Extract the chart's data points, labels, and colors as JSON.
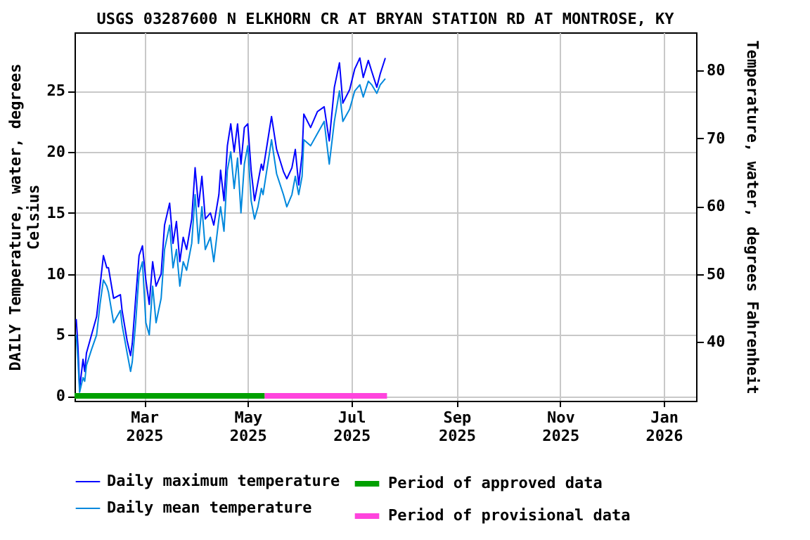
{
  "chart_data": {
    "type": "line",
    "title": "USGS 03287600 N ELKHORN CR AT BRYAN STATION RD AT MONTROSE, KY",
    "ylabel": "DAILY Temperature, water, degrees Celsius",
    "y2label": "Temperature, water, degrees Fahrenheit",
    "x": [
      "2025-01-20",
      "2025-01-21",
      "2025-01-22",
      "2025-01-24",
      "2025-01-25",
      "2025-01-26",
      "2025-01-29",
      "2025-02-01",
      "2025-02-03",
      "2025-02-05",
      "2025-02-07",
      "2025-02-08",
      "2025-02-11",
      "2025-02-15",
      "2025-02-16",
      "2025-02-19",
      "2025-02-21",
      "2025-02-22",
      "2025-02-24",
      "2025-02-26",
      "2025-02-28",
      "2025-03-02",
      "2025-03-04",
      "2025-03-06",
      "2025-03-08",
      "2025-03-11",
      "2025-03-13",
      "2025-03-16",
      "2025-03-18",
      "2025-03-20",
      "2025-03-22",
      "2025-03-24",
      "2025-03-26",
      "2025-03-29",
      "2025-03-31",
      "2025-04-02",
      "2025-04-04",
      "2025-04-06",
      "2025-04-09",
      "2025-04-11",
      "2025-04-14",
      "2025-04-15",
      "2025-04-17",
      "2025-04-19",
      "2025-04-21",
      "2025-04-23",
      "2025-04-25",
      "2025-04-27",
      "2025-04-29",
      "2025-05-01",
      "2025-05-03",
      "2025-05-05",
      "2025-05-07",
      "2025-05-09",
      "2025-05-10",
      "2025-05-15",
      "2025-05-18",
      "2025-05-22",
      "2025-05-24",
      "2025-05-27",
      "2025-05-29",
      "2025-05-31",
      "2025-06-02",
      "2025-06-03",
      "2025-06-07",
      "2025-06-11",
      "2025-06-15",
      "2025-06-18",
      "2025-06-21",
      "2025-06-24",
      "2025-06-26",
      "2025-06-30",
      "2025-07-03",
      "2025-07-06",
      "2025-07-08",
      "2025-07-11",
      "2025-07-13",
      "2025-07-16",
      "2025-07-18",
      "2025-07-21"
    ],
    "series": [
      {
        "name": "Daily maximum temperature",
        "color": "#0000ff",
        "values": [
          6.3,
          4.1,
          0.6,
          3.0,
          2.0,
          3.5,
          5.0,
          6.5,
          9.0,
          11.5,
          10.5,
          10.5,
          8.0,
          8.3,
          7.0,
          4.5,
          3.3,
          4.3,
          8.0,
          11.5,
          12.3,
          9.5,
          7.5,
          11.0,
          9.0,
          10.0,
          14.0,
          15.8,
          12.5,
          14.3,
          11.0,
          13.0,
          12.0,
          14.5,
          18.7,
          15.5,
          18.0,
          14.5,
          15.0,
          14.0,
          16.5,
          18.5,
          16.0,
          20.5,
          22.3,
          20.0,
          22.3,
          19.0,
          22.0,
          22.3,
          18.5,
          16.0,
          17.5,
          19.0,
          18.5,
          22.9,
          20.2,
          18.4,
          17.8,
          18.7,
          20.2,
          17.3,
          19.8,
          23.1,
          22.0,
          23.3,
          23.7,
          20.9,
          25.3,
          27.3,
          24.0,
          25.1,
          26.8,
          27.7,
          26.1,
          27.5,
          26.6,
          25.3,
          26.4,
          27.7
        ]
      },
      {
        "name": "Daily mean temperature",
        "color": "#0088dd",
        "values": [
          5.0,
          3.0,
          0.3,
          1.5,
          1.2,
          2.5,
          3.8,
          5.0,
          7.5,
          9.5,
          9.0,
          8.5,
          6.0,
          7.0,
          5.8,
          3.5,
          2.0,
          2.8,
          6.0,
          10.0,
          11.0,
          6.0,
          5.0,
          9.0,
          6.0,
          8.0,
          12.0,
          14.0,
          10.5,
          12.0,
          9.0,
          11.0,
          10.3,
          12.5,
          16.5,
          12.5,
          15.5,
          12.0,
          13.0,
          11.0,
          14.5,
          15.5,
          13.5,
          18.5,
          20.0,
          17.0,
          19.5,
          15.0,
          19.0,
          20.5,
          16.0,
          14.5,
          15.5,
          17.0,
          16.5,
          21.0,
          18.2,
          16.5,
          15.5,
          16.5,
          18.0,
          16.5,
          18.0,
          21.0,
          20.5,
          21.5,
          22.5,
          19.0,
          22.5,
          25.0,
          22.5,
          23.5,
          25.0,
          25.5,
          24.5,
          25.8,
          25.5,
          24.8,
          25.5,
          26.0
        ]
      },
      {
        "name": "Period of approved data",
        "color": "#00a000",
        "x": [
          "2025-01-19",
          "2025-05-11"
        ],
        "values": [
          0,
          0
        ]
      },
      {
        "name": "Period of provisional data",
        "color": "#ff44dd",
        "x": [
          "2025-05-11",
          "2025-07-22"
        ],
        "values": [
          0,
          0
        ]
      }
    ],
    "xlim": [
      "2025-01-19",
      "2026-01-20"
    ],
    "xticks": [
      {
        "value": "2025-03-01",
        "label": "Mar 2025"
      },
      {
        "value": "2025-05-01",
        "label": "May 2025"
      },
      {
        "value": "2025-07-01",
        "label": "Jul 2025"
      },
      {
        "value": "2025-09-01",
        "label": "Sep 2025"
      },
      {
        "value": "2025-11-01",
        "label": "Nov 2025"
      },
      {
        "value": "2026-01-01",
        "label": "Jan 2026"
      }
    ],
    "ylim": [
      -0.4,
      29.8
    ],
    "yticks": [
      0,
      5,
      10,
      15,
      20,
      25
    ],
    "y2lim": [
      31.28,
      85.64
    ],
    "y2ticks": [
      40,
      50,
      60,
      70,
      80
    ],
    "grid": true,
    "legend": "bottom"
  }
}
